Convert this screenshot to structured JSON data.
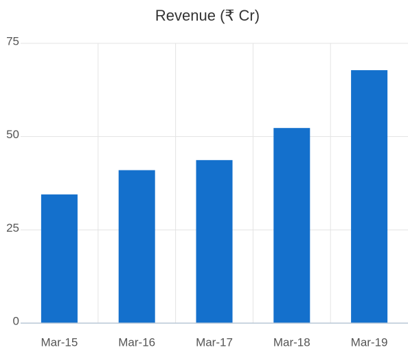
{
  "chart_data": {
    "type": "bar",
    "title": "Revenue (₹ Cr)",
    "categories": [
      "Mar-15",
      "Mar-16",
      "Mar-17",
      "Mar-18",
      "Mar-19"
    ],
    "values": [
      34.5,
      41,
      43.7,
      52.3,
      67.8
    ],
    "color": "#1470cc",
    "ylim": [
      0,
      75
    ],
    "yticks": [
      0,
      25,
      50,
      75
    ],
    "grid": true
  }
}
